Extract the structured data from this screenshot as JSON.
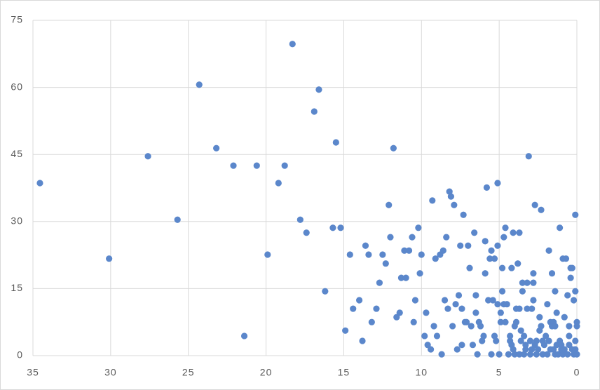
{
  "chart_data": {
    "type": "scatter",
    "x": [
      34.55,
      30.1,
      27.6,
      25.7,
      24.3,
      23.2,
      22.1,
      21.4,
      20.6,
      19.9,
      19.2,
      18.8,
      18.3,
      17.8,
      17.4,
      16.9,
      16.6,
      16.2,
      15.7,
      15.5,
      15.2,
      14.9,
      14.6,
      14.4,
      14.0,
      13.8,
      13.6,
      13.4,
      13.2,
      12.9,
      12.7,
      12.5,
      12.3,
      12.1,
      12.0,
      11.8,
      11.6,
      11.4,
      11.3,
      11.1,
      11.0,
      10.8,
      10.6,
      10.5,
      10.4,
      10.2,
      10.1,
      10.0,
      9.8,
      9.7,
      9.6,
      9.4,
      9.3,
      9.2,
      9.1,
      9.0,
      8.8,
      8.7,
      8.6,
      8.5,
      8.4,
      8.3,
      8.2,
      8.1,
      8.0,
      7.9,
      7.8,
      7.7,
      7.6,
      7.5,
      7.4,
      7.4,
      7.3,
      7.2,
      7.1,
      7.0,
      6.9,
      6.8,
      6.7,
      6.6,
      6.5,
      6.5,
      6.4,
      6.3,
      6.2,
      6.1,
      6.0,
      5.9,
      5.9,
      5.8,
      5.7,
      5.6,
      5.5,
      5.5,
      5.4,
      5.3,
      5.3,
      5.2,
      5.1,
      5.1,
      5.1,
      5.0,
      4.9,
      4.9,
      4.8,
      4.8,
      4.7,
      4.7,
      4.6,
      4.6,
      4.5,
      4.4,
      4.3,
      4.3,
      4.2,
      4.2,
      4.1,
      4.1,
      4.0,
      4.0,
      3.9,
      3.9,
      3.8,
      3.7,
      3.7,
      3.7,
      3.6,
      3.6,
      3.5,
      3.5,
      3.4,
      3.4,
      3.3,
      3.3,
      3.2,
      3.2,
      3.1,
      3.0,
      3.0,
      2.9,
      2.9,
      2.8,
      2.8,
      2.8,
      2.7,
      2.7,
      2.6,
      2.6,
      2.5,
      2.4,
      2.4,
      2.3,
      2.3,
      2.2,
      2.2,
      2.1,
      2.0,
      1.9,
      1.9,
      1.8,
      1.8,
      1.7,
      1.7,
      1.6,
      1.6,
      1.5,
      1.5,
      1.4,
      1.4,
      1.4,
      1.3,
      1.3,
      1.2,
      1.1,
      1.1,
      1.0,
      1.0,
      0.9,
      0.9,
      0.8,
      0.8,
      0.7,
      0.6,
      0.6,
      0.5,
      0.5,
      0.5,
      0.4,
      0.4,
      0.3,
      0.3,
      0.2,
      0.2,
      0.1,
      0.1,
      0.1,
      0.0,
      0.0,
      0.0,
      0.1
    ],
    "values": [
      38.6,
      21.7,
      44.6,
      30.4,
      60.6,
      46.4,
      42.5,
      4.4,
      42.5,
      22.6,
      38.6,
      42.5,
      69.7,
      30.4,
      27.5,
      54.6,
      59.5,
      14.4,
      28.6,
      47.7,
      28.6,
      5.6,
      22.6,
      10.5,
      12.4,
      3.3,
      24.6,
      22.6,
      7.5,
      10.5,
      16.3,
      22.6,
      20.6,
      33.7,
      26.5,
      46.4,
      8.6,
      9.6,
      17.4,
      23.5,
      17.4,
      23.5,
      26.5,
      7.5,
      12.4,
      28.6,
      18.4,
      22.6,
      4.4,
      9.6,
      2.4,
      1.4,
      34.7,
      6.6,
      21.7,
      4.4,
      22.6,
      0.3,
      23.5,
      12.4,
      26.5,
      10.5,
      36.7,
      35.6,
      6.6,
      33.7,
      11.5,
      1.4,
      13.5,
      24.6,
      10.5,
      2.4,
      31.5,
      7.5,
      7.5,
      24.6,
      19.6,
      6.6,
      2.4,
      27.5,
      9.6,
      13.5,
      0.3,
      7.5,
      6.6,
      3.3,
      4.4,
      18.4,
      25.6,
      37.6,
      12.4,
      21.7,
      23.5,
      0.3,
      12.4,
      21.7,
      4.4,
      3.3,
      24.6,
      38.6,
      11.5,
      0.3,
      7.5,
      9.6,
      19.6,
      14.4,
      11.5,
      26.5,
      28.6,
      7.5,
      11.5,
      0.3,
      3.3,
      4.4,
      2.4,
      19.6,
      27.5,
      1.4,
      0.3,
      6.6,
      7.5,
      10.5,
      20.6,
      10.5,
      0.3,
      27.5,
      3.3,
      5.6,
      16.3,
      14.4,
      4.4,
      0.3,
      1.4,
      2.4,
      16.3,
      10.5,
      44.6,
      0.3,
      3.3,
      1.4,
      10.5,
      16.3,
      12.4,
      18.4,
      33.7,
      2.4,
      0.3,
      3.3,
      1.4,
      8.6,
      5.6,
      6.6,
      32.6,
      3.3,
      0.3,
      2.4,
      4.4,
      0.3,
      11.5,
      23.5,
      3.3,
      7.5,
      1.4,
      6.6,
      18.4,
      7.5,
      1.4,
      0.3,
      14.4,
      6.6,
      2.4,
      9.6,
      0.3,
      28.6,
      3.3,
      1.4,
      2.4,
      21.7,
      0.3,
      1.4,
      8.6,
      21.7,
      13.5,
      0.3,
      6.6,
      2.4,
      4.4,
      19.6,
      17.4,
      1.4,
      19.6,
      0.3,
      12.4,
      3.3,
      31.5,
      14.4,
      7.5,
      6.6,
      0.3,
      1.4
    ],
    "color": "#5b87cb",
    "xlim": [
      35,
      0
    ],
    "ylim": [
      0,
      75
    ],
    "xticks": [
      35,
      30,
      25,
      20,
      15,
      10,
      5,
      0
    ],
    "yticks": [
      0,
      15,
      30,
      45,
      60,
      75
    ],
    "grid": true
  }
}
